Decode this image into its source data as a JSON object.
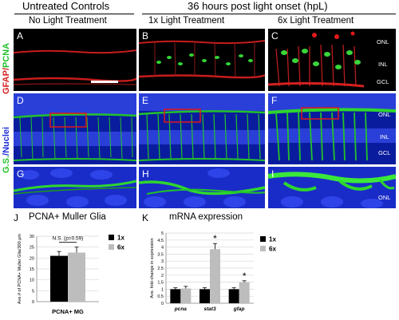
{
  "header": {
    "left_title": "Untreated Controls",
    "right_title": "36 hours post light onset (hpL)",
    "col1": "No Light Treatment",
    "col2": "1x Light Treatment",
    "col3": "6x Light Treatment"
  },
  "side_labels": {
    "row1_a": "GFAP/",
    "row1_b": "PCNA",
    "row2_a": "G.S.",
    "row2_b": "/Nuclei"
  },
  "panels": {
    "A": "A",
    "B": "B",
    "C": "C",
    "D": "D",
    "E": "E",
    "F": "F",
    "G": "G",
    "H": "H",
    "I": "I"
  },
  "layers": {
    "onl": "ONL",
    "inl": "INL",
    "gcl": "GCL"
  },
  "colors": {
    "red": "#d62020",
    "green": "#22c22a",
    "blue": "#1f2fd8",
    "box": "#e01818"
  },
  "chart_j": {
    "letter": "J",
    "title": "PCNA+ Muller Glia",
    "ylabel": "Ave.# of PCNA+ Muller Glia/300 μm",
    "xlabel": "PCNA+ MG",
    "ns_text": "N.S. (p=0.59)",
    "legend": [
      "1x",
      "6x"
    ]
  },
  "chart_k": {
    "letter": "K",
    "title": "mRNA expression",
    "ylabel": "Ave. fold-change in expression",
    "legend": [
      "1x",
      "6x"
    ],
    "star": "*"
  },
  "chart_data": [
    {
      "type": "bar",
      "categories": [
        "PCNA+ MG"
      ],
      "series": [
        {
          "name": "1x",
          "values": [
            21
          ],
          "errors": [
            2
          ],
          "color": "#000000"
        },
        {
          "name": "6x",
          "values": [
            22.5
          ],
          "errors": [
            2.5
          ],
          "color": "#bdbdbd"
        }
      ],
      "ylim": [
        0,
        30
      ],
      "yticks": [
        0,
        5,
        10,
        15,
        20,
        25,
        30
      ],
      "title": "PCNA+ Muller Glia",
      "ylabel": "Ave.# of PCNA+ Muller Glia/300 μm",
      "xlabel": "PCNA+ MG",
      "annotations": [
        "N.S. (p=0.59)"
      ],
      "grid": true,
      "legend": "top-right"
    },
    {
      "type": "bar",
      "categories": [
        "pcna",
        "stat3",
        "gfap"
      ],
      "series": [
        {
          "name": "1x",
          "values": [
            1,
            1,
            1
          ],
          "errors": [
            0.1,
            0.1,
            0.1
          ],
          "color": "#000000"
        },
        {
          "name": "6x",
          "values": [
            1.05,
            3.85,
            1.5
          ],
          "errors": [
            0.15,
            0.4,
            0.1
          ],
          "color": "#bdbdbd"
        }
      ],
      "ylim": [
        0,
        5
      ],
      "yticks": [
        0,
        0.5,
        1,
        1.5,
        2,
        2.5,
        3,
        3.5,
        4,
        4.5,
        5
      ],
      "title": "mRNA expression",
      "ylabel": "Ave. fold-change in expression",
      "annotations": [
        "*",
        "*"
      ],
      "grid": true,
      "legend": "top-right"
    }
  ]
}
